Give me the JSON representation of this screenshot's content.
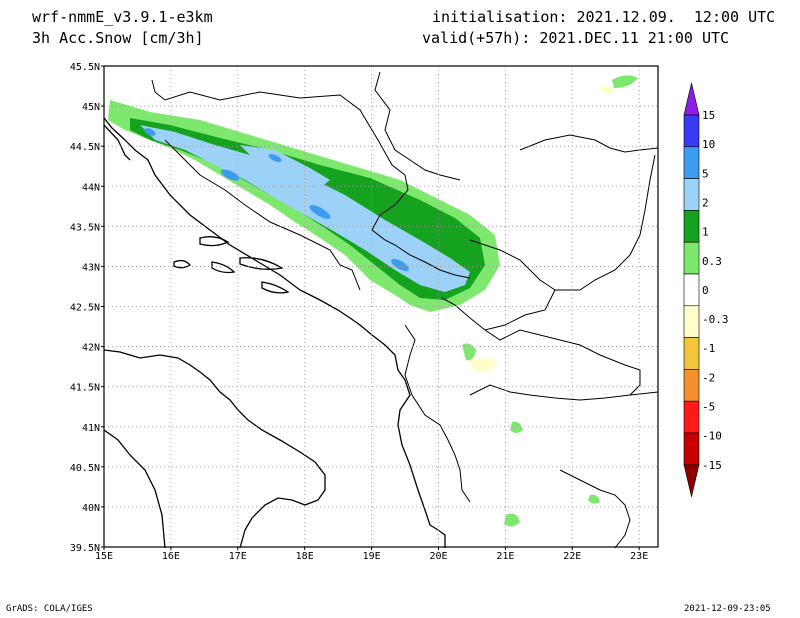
{
  "header": {
    "model": "wrf-nmmE_v3.9.1-e3km",
    "variable": "3h Acc.Snow [cm/3h]",
    "init": "initialisation: 2021.12.09.  12:00 UTC",
    "valid": "valid(+57h): 2021.DEC.11 21:00 UTC"
  },
  "map": {
    "lat_labels": [
      "45.5N",
      "45N",
      "44.5N",
      "44N",
      "43.5N",
      "43N",
      "42.5N",
      "42N",
      "41.5N",
      "41N",
      "40.5N",
      "40N",
      "39.5N"
    ],
    "lon_labels": [
      "15E",
      "16E",
      "17E",
      "18E",
      "19E",
      "20E",
      "21E",
      "22E",
      "23E"
    ],
    "grid": "dotted"
  },
  "legend": {
    "labels": [
      "15",
      "10",
      "5",
      "2",
      "1",
      "0.3",
      "0",
      "-0.3",
      "-1",
      "-2",
      "-5",
      "-10",
      "-15"
    ],
    "colors": [
      "#8c1ee6",
      "#3a3af5",
      "#3e9cf0",
      "#9cd2f8",
      "#15a21e",
      "#7ee86e",
      "#ffffff",
      "#ffffcc",
      "#f3c53a",
      "#f5902e",
      "#ff1a1a",
      "#c80000",
      "#8e0000"
    ]
  },
  "footer": {
    "left": "GrADS: COLA/IGES",
    "right": "2021-12-09-23:05"
  }
}
